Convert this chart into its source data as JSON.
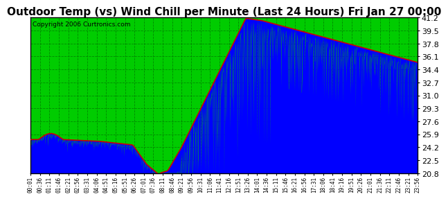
{
  "title": "Outdoor Temp (vs) Wind Chill per Minute (Last 24 Hours) Fri Jan 27 00:00",
  "copyright": "Copyright 2006 Curtronics.com",
  "y_ticks": [
    20.8,
    22.5,
    24.2,
    25.9,
    27.6,
    29.3,
    31.0,
    32.7,
    34.4,
    36.1,
    37.8,
    39.5,
    41.2
  ],
  "ylim": [
    20.8,
    41.2
  ],
  "x_labels": [
    "00:01",
    "00:36",
    "01:11",
    "01:46",
    "02:21",
    "02:56",
    "03:31",
    "04:06",
    "04:51",
    "05:16",
    "05:51",
    "06:26",
    "07:01",
    "07:36",
    "08:11",
    "08:46",
    "09:21",
    "09:56",
    "10:31",
    "11:06",
    "11:41",
    "12:16",
    "12:51",
    "13:26",
    "14:01",
    "14:36",
    "15:11",
    "15:46",
    "16:21",
    "16:56",
    "17:31",
    "18:06",
    "18:41",
    "19:16",
    "19:51",
    "20:26",
    "21:01",
    "21:36",
    "22:11",
    "22:46",
    "23:21",
    "23:56"
  ],
  "background_color": "#00cc00",
  "grid_color": "#008800",
  "title_fontsize": 11,
  "red_color": "#cc0000",
  "blue_color": "#0000ff",
  "num_minutes": 1440
}
